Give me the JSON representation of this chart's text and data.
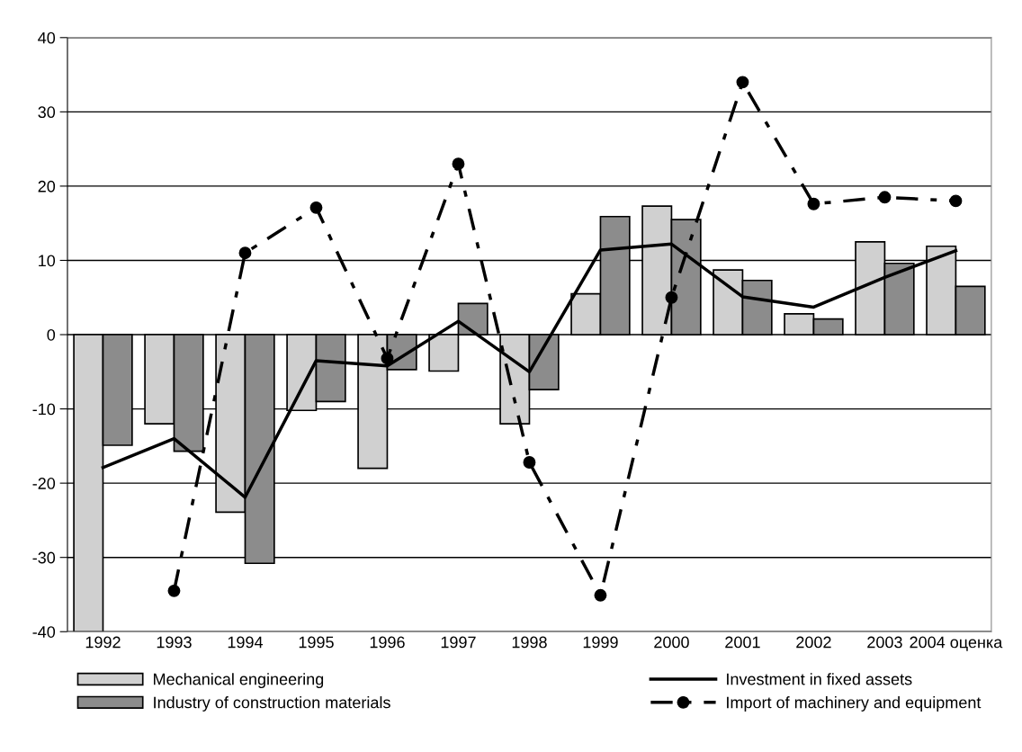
{
  "chart_data": {
    "type": "bar",
    "categories": [
      "1992",
      "1993",
      "1994",
      "1995",
      "1996",
      "1997",
      "1998",
      "1999",
      "2000",
      "2001",
      "2002",
      "2003",
      "2004 оценка"
    ],
    "series": [
      {
        "name": "Mechanical engineering",
        "color": "#d0d0d0",
        "values": [
          -40,
          -12.0,
          -23.9,
          -10.2,
          -18.0,
          -4.9,
          -12.0,
          5.5,
          17.3,
          8.7,
          2.8,
          12.5,
          11.9
        ]
      },
      {
        "name": "Industry of construction materials",
        "color": "#8c8c8c",
        "values": [
          -14.9,
          -15.7,
          -30.8,
          -9.0,
          -4.7,
          4.2,
          -7.4,
          15.9,
          15.5,
          7.3,
          2.1,
          9.6,
          6.5
        ]
      },
      {
        "name": "Investment in fixed assets",
        "type": "line",
        "color": "#000000",
        "line_style": "solid",
        "marker": "none",
        "values": [
          -17.9,
          -14.0,
          -21.9,
          -3.5,
          -4.2,
          1.8,
          -5.0,
          11.4,
          12.2,
          5.1,
          3.7,
          7.7,
          11.3
        ]
      },
      {
        "name": "Import of machinery and equipment",
        "type": "line",
        "color": "#000000",
        "line_style": "dashed",
        "marker": "circle",
        "values": [
          null,
          -34.5,
          11.0,
          17.1,
          -3.2,
          23.0,
          -17.2,
          -35.1,
          5.0,
          34.0,
          17.6,
          18.5,
          18.0
        ]
      }
    ],
    "ylim": [
      -40,
      40
    ],
    "yticks": [
      -40,
      -30,
      -20,
      -10,
      0,
      10,
      20,
      30,
      40
    ],
    "grid": "y",
    "legend": "bottom"
  }
}
